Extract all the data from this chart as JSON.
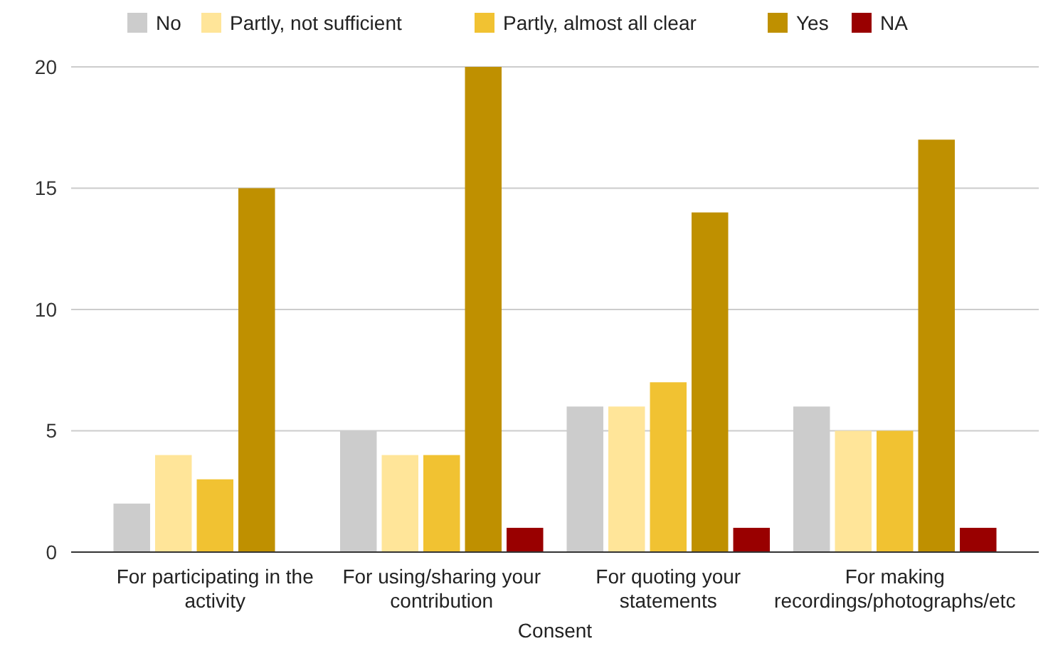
{
  "chart_data": {
    "type": "bar",
    "xlabel": "Consent",
    "categories": [
      "For participating in the activity",
      "For using/sharing your contribution",
      "For quoting your statements",
      "For making recordings/photographs/etc"
    ],
    "series": [
      {
        "name": "No",
        "color": "#cccccc",
        "values": [
          2,
          5,
          6,
          6
        ]
      },
      {
        "name": "Partly, not sufficient",
        "color": "#ffe599",
        "values": [
          4,
          4,
          6,
          5
        ]
      },
      {
        "name": "Partly, almost all clear",
        "color": "#f1c232",
        "values": [
          3,
          4,
          7,
          5
        ]
      },
      {
        "name": "Yes",
        "color": "#bf9000",
        "values": [
          15,
          20,
          14,
          17
        ]
      },
      {
        "name": "NA",
        "color": "#990000",
        "values": [
          null,
          1,
          1,
          1
        ]
      }
    ],
    "ylim": [
      0,
      20
    ],
    "yticks": [
      0,
      5,
      10,
      15,
      20
    ],
    "grid": "y",
    "legend": "top"
  }
}
